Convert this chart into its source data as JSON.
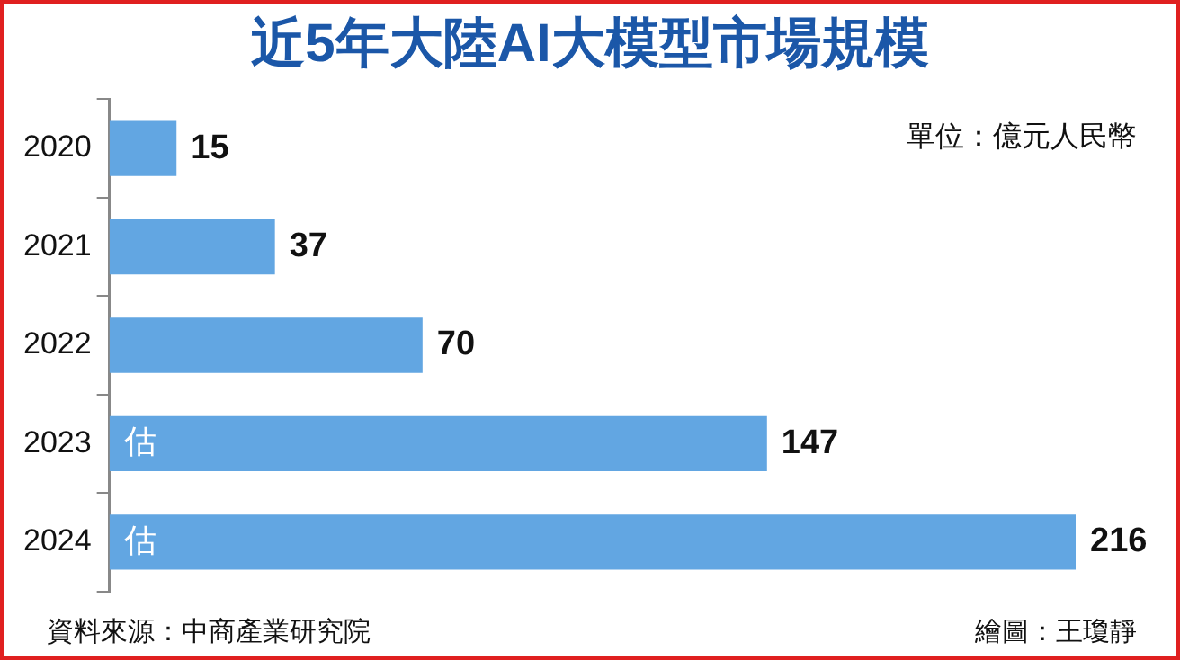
{
  "chart_data": {
    "type": "bar",
    "orientation": "horizontal",
    "title": "近5年大陸AI大模型市場規模",
    "categories": [
      "2020",
      "2021",
      "2022",
      "2023",
      "2024"
    ],
    "values": [
      15,
      37,
      70,
      147,
      216
    ],
    "color": "#62a6e2",
    "data_labels": true,
    "grid": false,
    "legend": false,
    "annotations": [
      "單位：億元人民幣",
      "資料來源：中商產業研究院",
      "繪圖：王瓊靜",
      "估",
      "估"
    ]
  }
}
